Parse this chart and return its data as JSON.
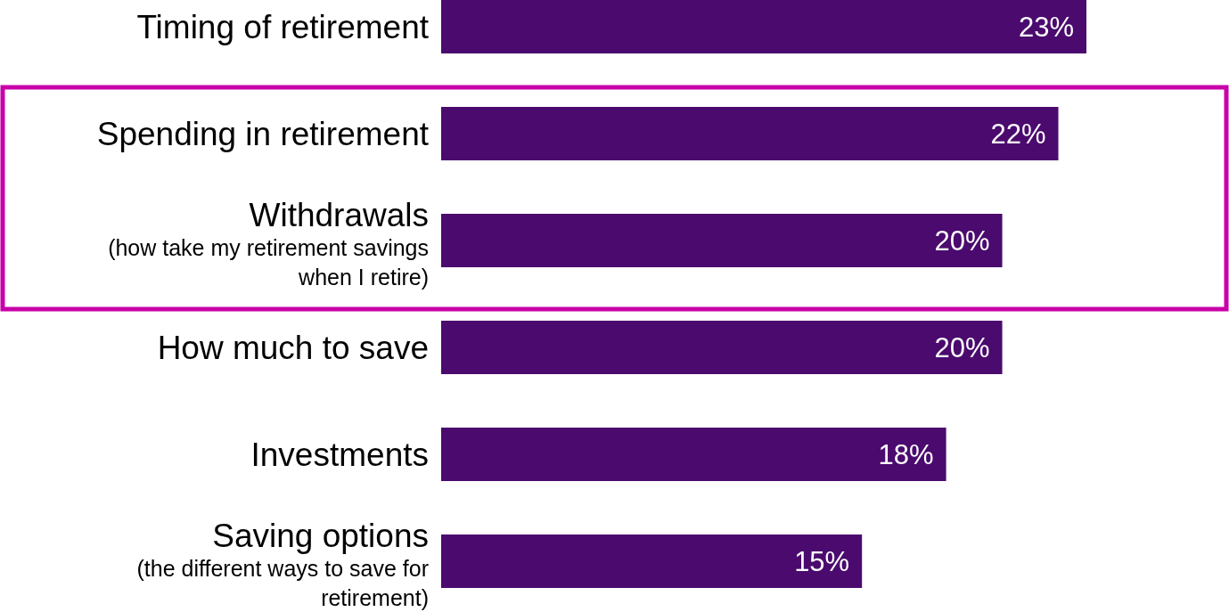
{
  "chart_data": {
    "type": "bar",
    "orientation": "horizontal",
    "categories": [
      "Timing of retirement",
      "Spending in retirement",
      "Withdrawals\n(how take my retirement savings\nwhen I retire)",
      "How much to save",
      "Investments",
      "Saving options\n(the different ways to save for\nretirement)"
    ],
    "values": [
      23,
      22,
      20,
      20,
      18,
      15
    ],
    "color": "#4b0a6e",
    "data_labels": true,
    "value_labels": [
      "23%",
      "22%",
      "20%",
      "20%",
      "18%",
      "15%"
    ]
  }
}
